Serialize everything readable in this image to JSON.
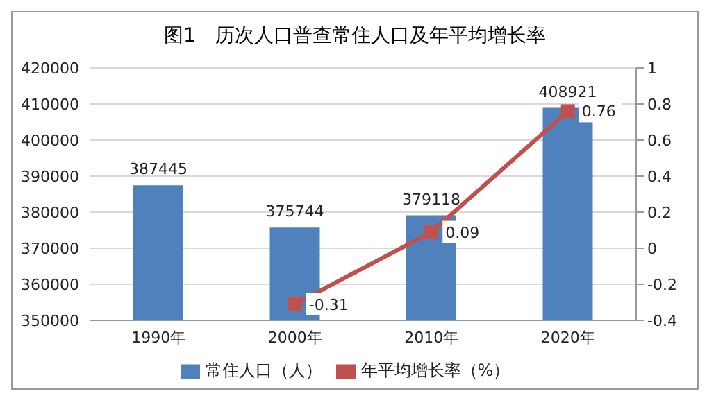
{
  "chart_data": {
    "type": "bar",
    "title": "图1　历次人口普查常住人口及年平均增长率",
    "categories": [
      "1990年",
      "2000年",
      "2010年",
      "2020年"
    ],
    "series": [
      {
        "name": "常住人口（人）",
        "color": "#4f81bd",
        "values": [
          387445,
          375744,
          379118,
          408921
        ]
      },
      {
        "name": "年平均增长率（%）",
        "type": "line",
        "axis": "y2",
        "color": "#c0504d",
        "marker": "square",
        "values": [
          null,
          -0.31,
          0.09,
          0.76
        ]
      }
    ],
    "ylim": [
      350000,
      420000
    ],
    "yticks": [
      350000,
      360000,
      370000,
      380000,
      390000,
      400000,
      410000,
      420000
    ],
    "y2lim": [
      -0.4,
      1
    ],
    "y2ticks": [
      -0.4,
      -0.2,
      0,
      0.2,
      0.4,
      0.6,
      0.8,
      1
    ],
    "grid": "y",
    "legend": "bottom",
    "data_labels": true
  }
}
